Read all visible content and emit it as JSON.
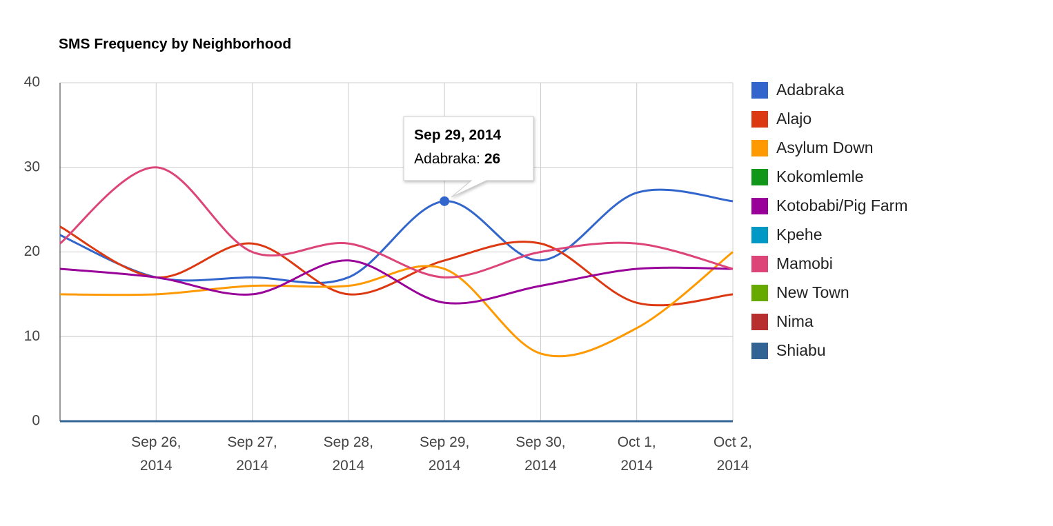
{
  "chart_data": {
    "type": "line",
    "title": "SMS Frequency by Neighborhood",
    "x": [
      "2014-09-25",
      "2014-09-26",
      "2014-09-27",
      "2014-09-28",
      "2014-09-29",
      "2014-09-30",
      "2014-10-01",
      "2014-10-02"
    ],
    "xlim": [
      "2014-09-25",
      "2014-10-02"
    ],
    "xticks": [
      {
        "value": "2014-09-26",
        "label": "Sep 26, 2014"
      },
      {
        "value": "2014-09-27",
        "label": "Sep 27, 2014"
      },
      {
        "value": "2014-09-28",
        "label": "Sep 28, 2014"
      },
      {
        "value": "2014-09-29",
        "label": "Sep 29, 2014"
      },
      {
        "value": "2014-09-30",
        "label": "Sep 30, 2014"
      },
      {
        "value": "2014-10-01",
        "label": "Oct 1, 2014"
      },
      {
        "value": "2014-10-02",
        "label": "Oct 2, 2014"
      }
    ],
    "ylim": [
      0,
      40
    ],
    "yticks": [
      0,
      10,
      20,
      30,
      40
    ],
    "grid": true,
    "legend": "right",
    "smooth": true,
    "series": [
      {
        "name": "Adabraka",
        "color": "#3366cc",
        "values": [
          22,
          17,
          17,
          17,
          26,
          19,
          27,
          26
        ]
      },
      {
        "name": "Alajo",
        "color": "#dc3912",
        "values": [
          23,
          17,
          21,
          15,
          19,
          21,
          14,
          15
        ]
      },
      {
        "name": "Asylum Down",
        "color": "#ff9900",
        "values": [
          15,
          15,
          16,
          16,
          18,
          8,
          11,
          20
        ]
      },
      {
        "name": "Kokomlemle",
        "color": "#109618",
        "values": [
          0,
          0,
          0,
          0,
          0,
          0,
          0,
          0
        ]
      },
      {
        "name": "Kotobabi/Pig Farm",
        "color": "#990099",
        "values": [
          18,
          17,
          15,
          19,
          14,
          16,
          18,
          18
        ]
      },
      {
        "name": "Kpehe",
        "color": "#0099c6",
        "values": [
          0,
          0,
          0,
          0,
          0,
          0,
          0,
          0
        ]
      },
      {
        "name": "Mamobi",
        "color": "#dd4477",
        "values": [
          21,
          30,
          20,
          21,
          17,
          20,
          21,
          18
        ]
      },
      {
        "name": "New Town",
        "color": "#66aa00",
        "values": [
          0,
          0,
          0,
          0,
          0,
          0,
          0,
          0
        ]
      },
      {
        "name": "Nima",
        "color": "#b82e2e",
        "values": [
          0,
          0,
          0,
          0,
          0,
          0,
          0,
          0
        ]
      },
      {
        "name": "Shiabu",
        "color": "#316395",
        "values": [
          0,
          0,
          0,
          0,
          0,
          0,
          0,
          0
        ]
      }
    ],
    "tooltip": {
      "title": "Sep 29, 2014",
      "label": "Adabraka:",
      "value": 26
    }
  }
}
